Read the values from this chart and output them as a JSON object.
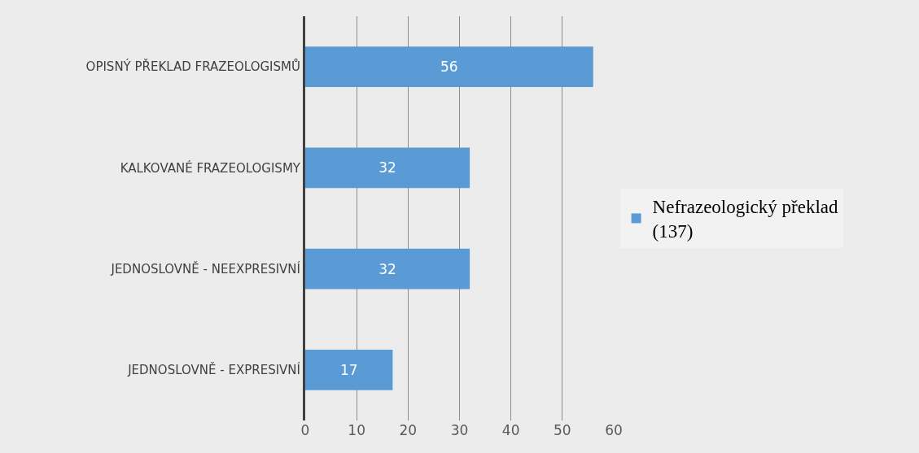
{
  "chart_data": {
    "type": "bar",
    "orientation": "horizontal",
    "categories": [
      "OPISNÝ PŘEKLAD FRAZEOLOGISMŮ",
      "KALKOVANÉ FRAZEOLOGISMY",
      "JEDNOSLOVNĚ - NEEXPRESIVNÍ",
      "JEDNOSLOVNĚ - EXPRESIVNÍ"
    ],
    "series": [
      {
        "name": "Nefrazeologický překlad (137)",
        "color": "#5b9bd5",
        "values": [
          56,
          32,
          32,
          17
        ]
      }
    ],
    "xlim": [
      0,
      60
    ],
    "xticks": [
      0,
      10,
      20,
      30,
      40,
      50,
      60
    ],
    "grid": "x",
    "legend": "right",
    "data_labels": true
  }
}
